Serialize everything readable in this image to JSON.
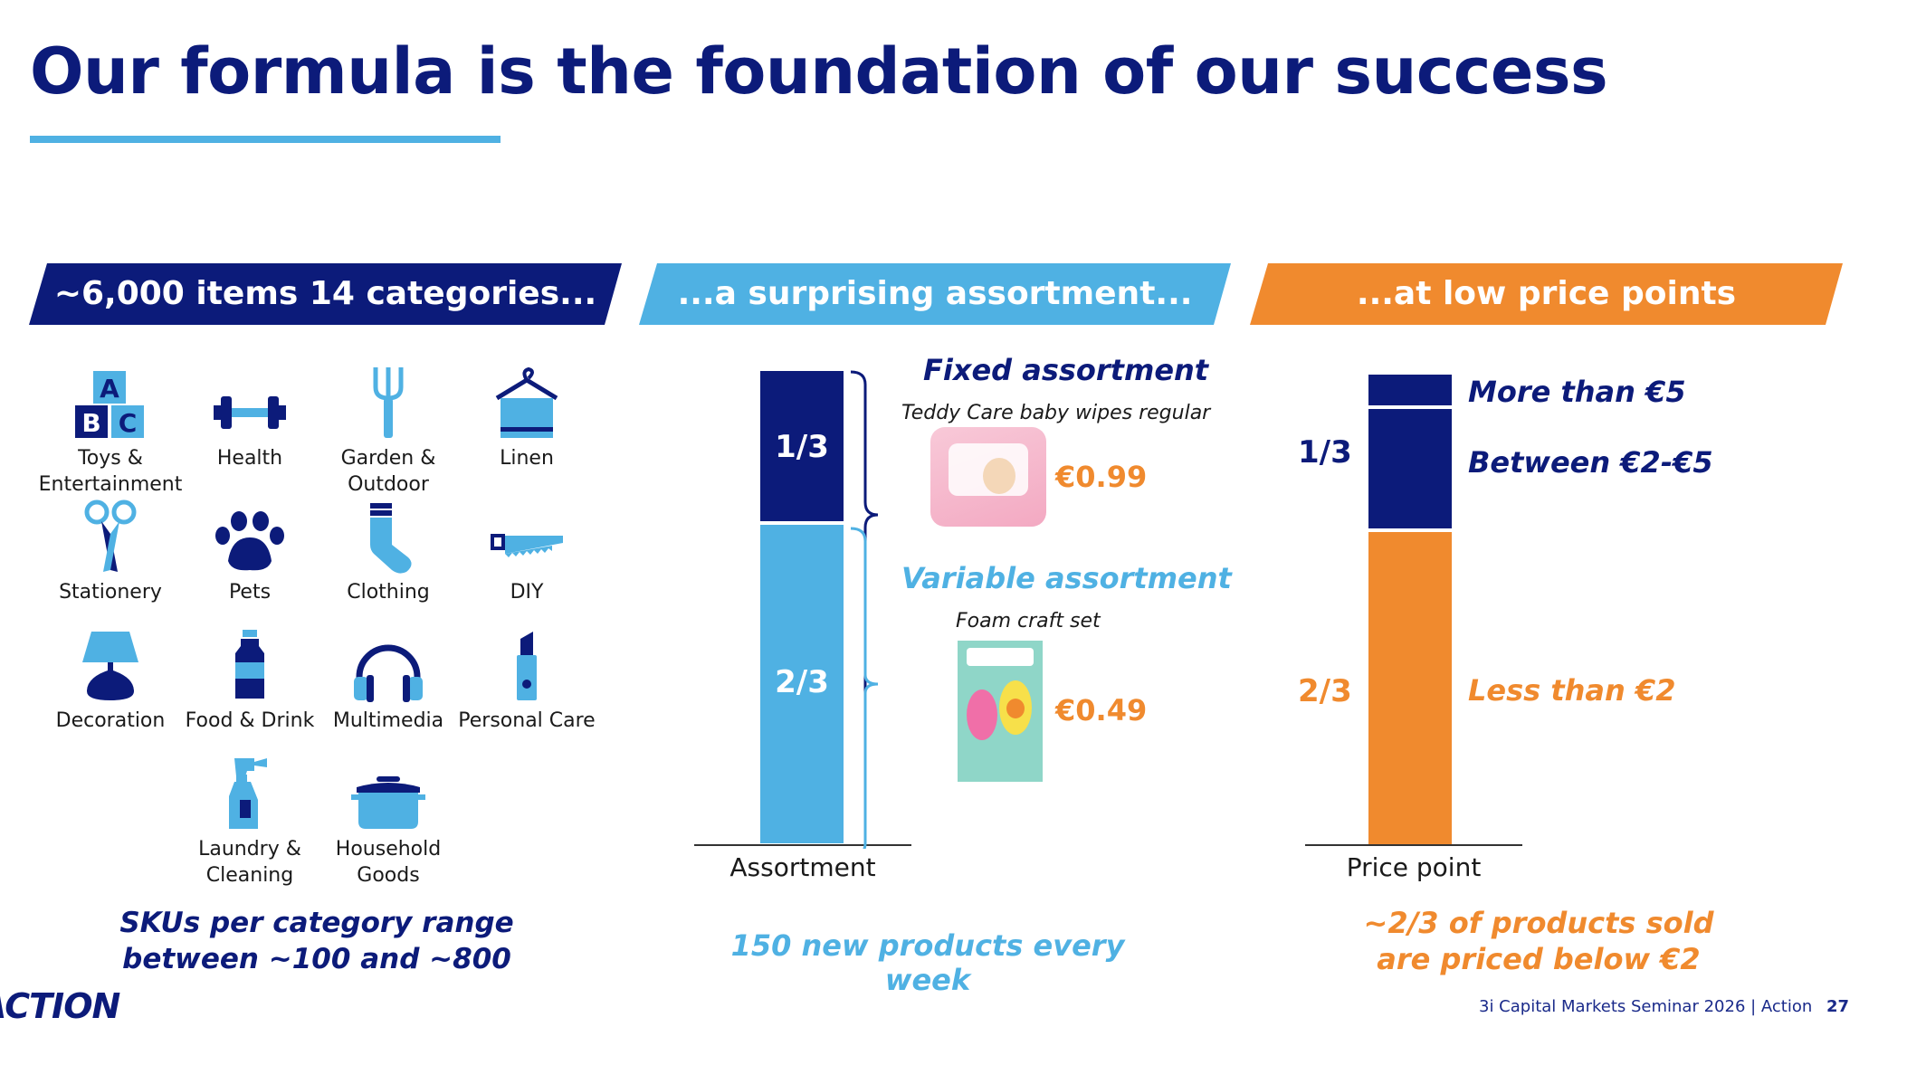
{
  "title": "Our formula is the foundation of our success",
  "colors": {
    "navy": "#0c1b7a",
    "light_blue": "#4fb1e3",
    "orange": "#f08a2e"
  },
  "banners": {
    "left": "~6,000 items 14 categories...",
    "middle": "...a surprising assortment...",
    "right": "...at low price points"
  },
  "categories": [
    {
      "label": "Toys &\nEntertainment",
      "icon": "abc-blocks-icon"
    },
    {
      "label": "Health",
      "icon": "dumbbell-icon"
    },
    {
      "label": "Garden &\nOutdoor",
      "icon": "fork-icon"
    },
    {
      "label": "Linen",
      "icon": "towel-hanger-icon"
    },
    {
      "label": "Stationery",
      "icon": "scissors-icon"
    },
    {
      "label": "Pets",
      "icon": "paw-icon"
    },
    {
      "label": "Clothing",
      "icon": "sock-icon"
    },
    {
      "label": "DIY",
      "icon": "saw-icon"
    },
    {
      "label": "Decoration",
      "icon": "lamp-icon"
    },
    {
      "label": "Food & Drink",
      "icon": "bottle-icon"
    },
    {
      "label": "Multimedia",
      "icon": "headphones-icon"
    },
    {
      "label": "Personal Care",
      "icon": "lipstick-icon"
    },
    {
      "label": "Laundry &\nCleaning",
      "icon": "spray-bottle-icon"
    },
    {
      "label": "Household\nGoods",
      "icon": "cooking-pot-icon"
    }
  ],
  "left_caption": {
    "line1": "SKUs per category range",
    "line2": "between ~100 and ~800"
  },
  "assortment": {
    "axis_label": "Assortment",
    "top_label": "1/3",
    "bottom_label": "2/3",
    "top_share": 0.333,
    "fixed": {
      "title": "Fixed assortment",
      "product": "Teddy Care baby wipes regular",
      "price": "€0.99"
    },
    "variable": {
      "title": "Variable assortment",
      "product": "Foam craft set",
      "price": "€0.49"
    },
    "caption": "150 new products every week"
  },
  "price_point": {
    "axis_label": "Price point",
    "top_label": "1/3",
    "bottom_label": "2/3",
    "segments": [
      {
        "name": "More than €5"
      },
      {
        "name": "Between €2-€5"
      },
      {
        "name": "Less than €2"
      }
    ],
    "caption_line1": "~2/3 of products sold",
    "caption_line2": "are priced below €2"
  },
  "footer": {
    "logo": "ACTION",
    "text": "3i Capital Markets Seminar 2026 | Action",
    "page": "27"
  }
}
